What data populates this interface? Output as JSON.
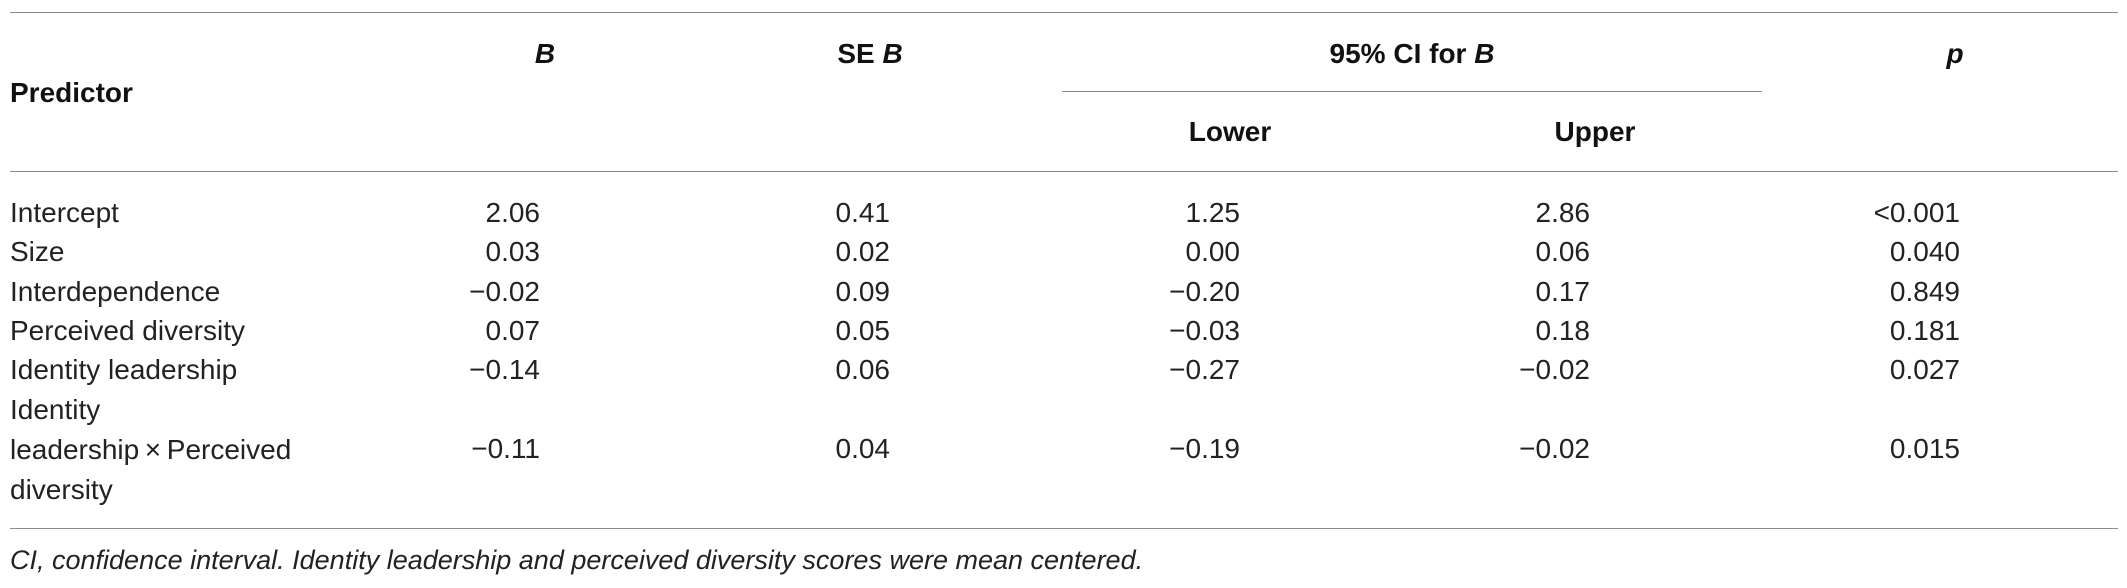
{
  "headers": {
    "predictor": "Predictor",
    "b": "B",
    "se_prefix": "SE ",
    "se_italic": "B",
    "ci_prefix": "95% CI for ",
    "ci_italic": "B",
    "lower": "Lower",
    "upper": "Upper",
    "p": "p"
  },
  "rows": [
    {
      "predictor": "Intercept",
      "b": "2.06",
      "se": "0.41",
      "lower": "1.25",
      "upper": "2.86",
      "p": "<0.001"
    },
    {
      "predictor": "Size",
      "b": "0.03",
      "se": "0.02",
      "lower": "0.00",
      "upper": "0.06",
      "p": "0.040"
    },
    {
      "predictor": "Interdependence",
      "b": "−0.02",
      "se": "0.09",
      "lower": "−0.20",
      "upper": "0.17",
      "p": "0.849"
    },
    {
      "predictor": "Perceived diversity",
      "b": "0.07",
      "se": "0.05",
      "lower": "−0.03",
      "upper": "0.18",
      "p": "0.181"
    },
    {
      "predictor": "Identity leadership",
      "b": "−0.14",
      "se": "0.06",
      "lower": "−0.27",
      "upper": "−0.02",
      "p": "0.027"
    },
    {
      "predictor_lines": [
        "Identity",
        "leadership × Perceived",
        "diversity"
      ],
      "b": "−0.11",
      "se": "0.04",
      "lower": "−0.19",
      "upper": "−0.02",
      "p": "0.015"
    }
  ],
  "footnote": "CI, confidence interval. Identity leadership and perceived diversity scores were mean centered."
}
